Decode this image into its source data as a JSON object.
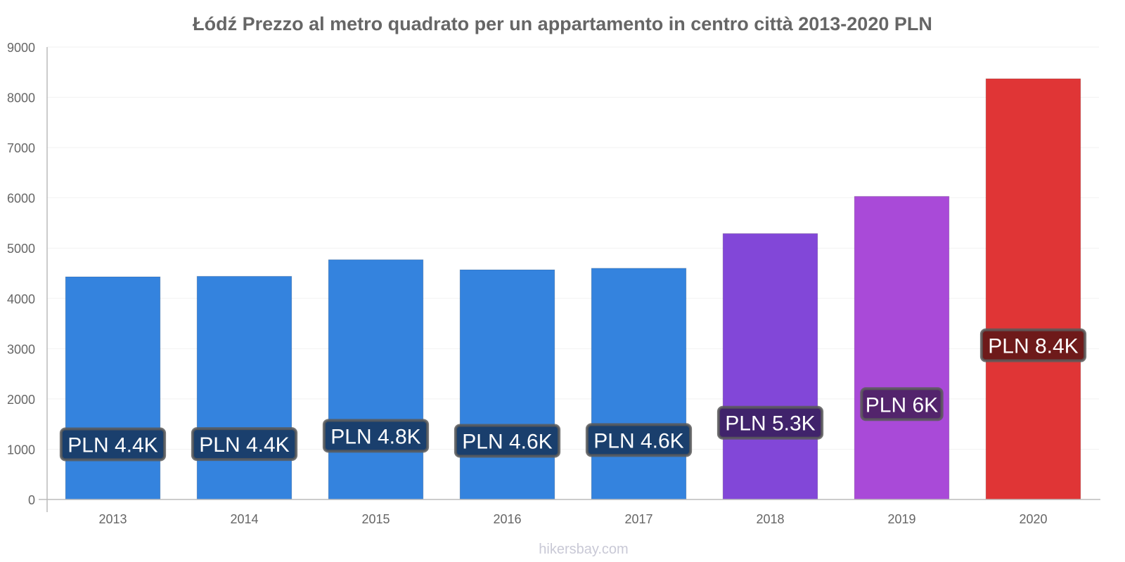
{
  "chart_data": {
    "type": "bar",
    "title": "Łódź Prezzo al metro quadrato per un appartamento in centro città 2013-2020 PLN",
    "categories": [
      "2013",
      "2014",
      "2015",
      "2016",
      "2017",
      "2018",
      "2019",
      "2020"
    ],
    "values": [
      4430,
      4440,
      4770,
      4570,
      4600,
      5290,
      6030,
      8370
    ],
    "data_labels": [
      "PLN 4.4K",
      "PLN 4.4K",
      "PLN 4.8K",
      "PLN 4.6K",
      "PLN 4.6K",
      "PLN 5.3K",
      "PLN 6K",
      "PLN 8.4K"
    ],
    "bar_colors": [
      "#3483de",
      "#3483de",
      "#3483de",
      "#3483de",
      "#3483de",
      "#8247d8",
      "#a94ad8",
      "#e03536"
    ],
    "label_bg_colors": [
      "#1a3f6d",
      "#1a3f6d",
      "#1a3f6d",
      "#1a3f6d",
      "#1a3f6d",
      "#40236b",
      "#53246c",
      "#6e1a1a"
    ],
    "yticks": [
      0,
      1000,
      2000,
      3000,
      4000,
      5000,
      6000,
      7000,
      8000,
      9000
    ],
    "ylim": [
      0,
      9000
    ],
    "xlabel": "",
    "ylabel": "",
    "grid": true,
    "watermark": "hikersbay.com"
  }
}
